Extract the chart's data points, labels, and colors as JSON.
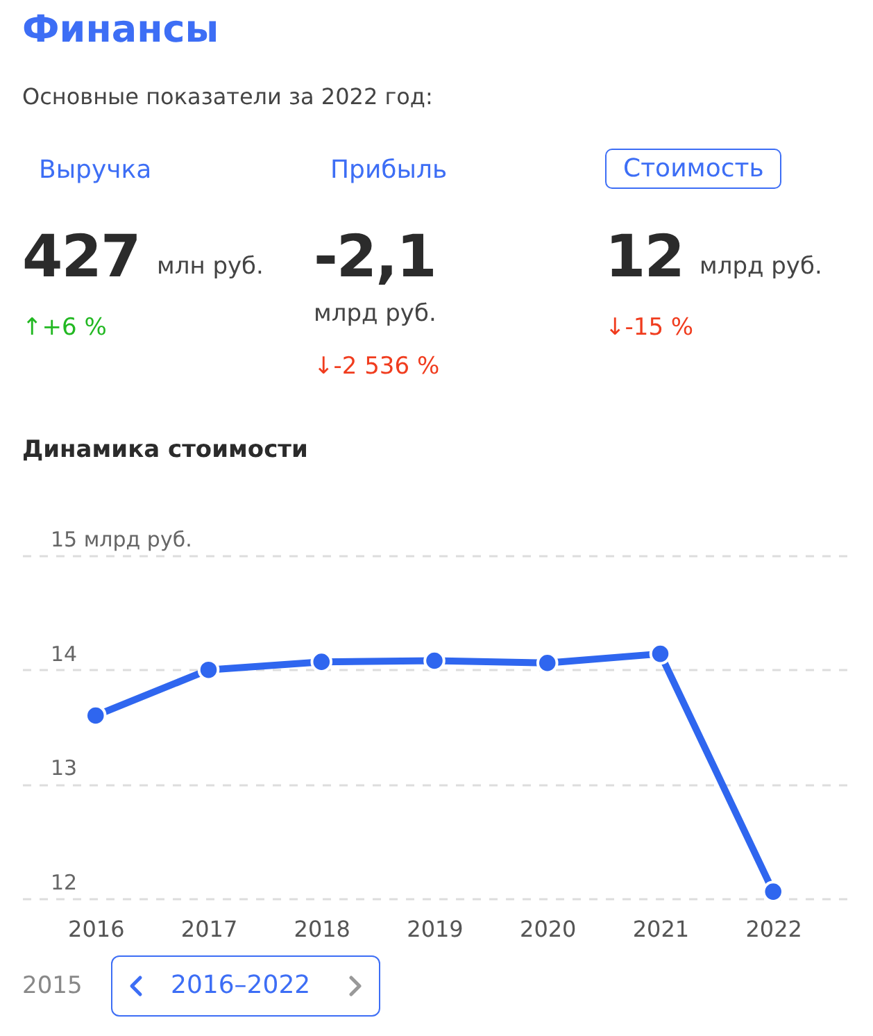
{
  "chart_data": [
    {
      "type": "other",
      "title": "Финансы",
      "subtitle": "Основные показатели за 2022 год:",
      "annotations": [
        "Выручка",
        "427",
        "млн руб.",
        "↑+6 %",
        "Прибыль",
        "-2,1",
        "млрд руб.",
        "↓-2 536 %",
        "Стоимость",
        "12",
        "млрд руб.",
        "↓-15 %"
      ]
    },
    {
      "type": "line",
      "title": "Динамика стоимости",
      "categories": [
        "2016",
        "2017",
        "2018",
        "2019",
        "2020",
        "2021",
        "2022"
      ],
      "series": [
        {
          "color": "#2f66ef",
          "values": [
            13.6,
            14.0,
            14.07,
            14.08,
            14.06,
            14.14,
            12.06
          ]
        }
      ],
      "ylim": [
        12,
        15
      ],
      "yticks": [
        12,
        13,
        14,
        {
          "value": 15,
          "label": "15 млрд руб."
        }
      ],
      "grid": "y",
      "marker": "circle",
      "line_style": "solid",
      "annotations": [
        "2015",
        "2016–2022"
      ]
    }
  ]
}
